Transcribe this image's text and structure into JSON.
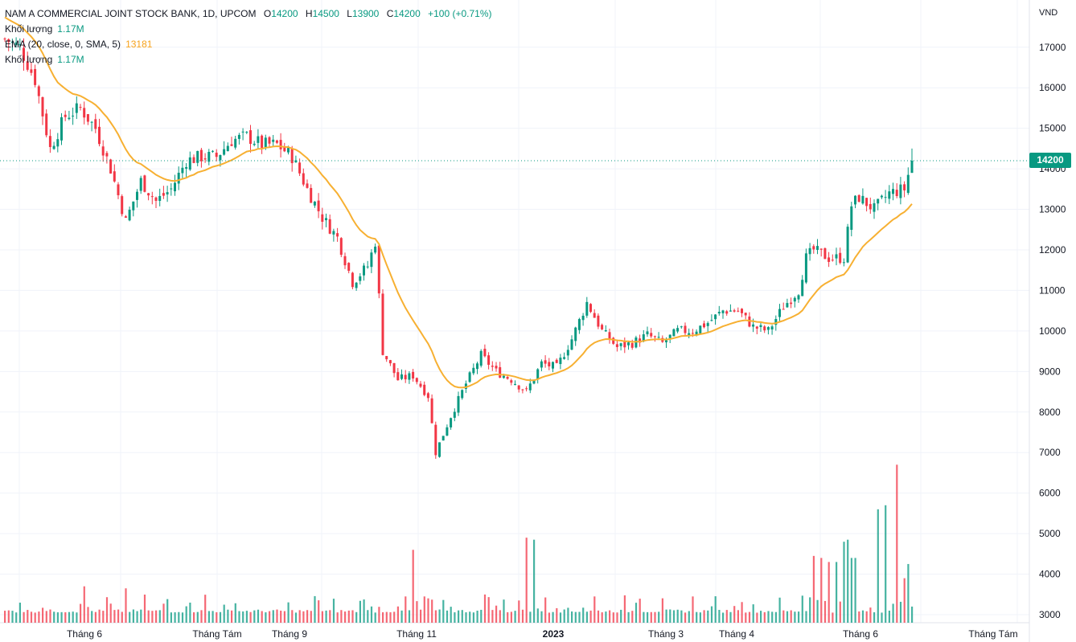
{
  "legend": {
    "symbol": "NAM A COMMERCIAL JOINT STOCK BANK, 1D, UPCOM",
    "open_label": "O",
    "open": "14200",
    "high_label": "H",
    "high": "14500",
    "low_label": "L",
    "low": "13900",
    "close_label": "C",
    "close": "14200",
    "change": "+100 (+0.71%)",
    "volume_label": "Khối lượng",
    "volume_value": "1.17M",
    "ema_label": "EMA (20, close, 0, SMA, 5)",
    "ema_value": "13181",
    "volume_label2": "Khối lượng",
    "volume_value2": "1.17M"
  },
  "price_tag": "14200",
  "unit": "VND",
  "chart_data": {
    "type": "candlestick",
    "y_axis": {
      "min": 2800,
      "max": 17800,
      "ticks": [
        3000,
        4000,
        5000,
        6000,
        7000,
        8000,
        9000,
        10000,
        11000,
        12000,
        13000,
        14000,
        15000,
        16000,
        17000
      ]
    },
    "x_axis_labels": [
      "Tháng 6",
      "Tháng Tám",
      "Tháng 9",
      "Tháng 11",
      "2023",
      "Tháng 3",
      "Tháng 4",
      "Tháng 6",
      "Tháng Tám"
    ],
    "close_anchors": [
      {
        "i": 0,
        "c": 17200
      },
      {
        "i": 4,
        "c": 17000
      },
      {
        "i": 8,
        "c": 16200
      },
      {
        "i": 12,
        "c": 14500
      },
      {
        "i": 16,
        "c": 15300
      },
      {
        "i": 20,
        "c": 15500
      },
      {
        "i": 24,
        "c": 15000
      },
      {
        "i": 28,
        "c": 14000
      },
      {
        "i": 32,
        "c": 12700
      },
      {
        "i": 36,
        "c": 13700
      },
      {
        "i": 40,
        "c": 13200
      },
      {
        "i": 44,
        "c": 13500
      },
      {
        "i": 48,
        "c": 14200
      },
      {
        "i": 52,
        "c": 14300
      },
      {
        "i": 56,
        "c": 14300
      },
      {
        "i": 60,
        "c": 14700
      },
      {
        "i": 64,
        "c": 14800
      },
      {
        "i": 68,
        "c": 14600
      },
      {
        "i": 72,
        "c": 14600
      },
      {
        "i": 76,
        "c": 14300
      },
      {
        "i": 80,
        "c": 13500
      },
      {
        "i": 84,
        "c": 12800
      },
      {
        "i": 88,
        "c": 12300
      },
      {
        "i": 92,
        "c": 11200
      },
      {
        "i": 96,
        "c": 11600
      },
      {
        "i": 98,
        "c": 12200
      },
      {
        "i": 100,
        "c": 9500
      },
      {
        "i": 104,
        "c": 8800
      },
      {
        "i": 108,
        "c": 8900
      },
      {
        "i": 112,
        "c": 8400
      },
      {
        "i": 114,
        "c": 7000
      },
      {
        "i": 118,
        "c": 7900
      },
      {
        "i": 122,
        "c": 8700
      },
      {
        "i": 126,
        "c": 9400
      },
      {
        "i": 130,
        "c": 9000
      },
      {
        "i": 134,
        "c": 8800
      },
      {
        "i": 138,
        "c": 8500
      },
      {
        "i": 142,
        "c": 9200
      },
      {
        "i": 146,
        "c": 9100
      },
      {
        "i": 150,
        "c": 9800
      },
      {
        "i": 154,
        "c": 10700
      },
      {
        "i": 158,
        "c": 10000
      },
      {
        "i": 162,
        "c": 9600
      },
      {
        "i": 166,
        "c": 9700
      },
      {
        "i": 170,
        "c": 9900
      },
      {
        "i": 174,
        "c": 9700
      },
      {
        "i": 178,
        "c": 10000
      },
      {
        "i": 182,
        "c": 10000
      },
      {
        "i": 186,
        "c": 10200
      },
      {
        "i": 190,
        "c": 10500
      },
      {
        "i": 194,
        "c": 10500
      },
      {
        "i": 198,
        "c": 10100
      },
      {
        "i": 202,
        "c": 10000
      },
      {
        "i": 206,
        "c": 10600
      },
      {
        "i": 210,
        "c": 11000
      },
      {
        "i": 212,
        "c": 11800
      },
      {
        "i": 214,
        "c": 12000
      },
      {
        "i": 218,
        "c": 11800
      },
      {
        "i": 222,
        "c": 11800
      },
      {
        "i": 224,
        "c": 13100
      },
      {
        "i": 226,
        "c": 13300
      },
      {
        "i": 230,
        "c": 13000
      },
      {
        "i": 234,
        "c": 13400
      },
      {
        "i": 238,
        "c": 13500
      },
      {
        "i": 240,
        "c": 14200
      }
    ],
    "n_bars": 241,
    "volume_spikes": [
      {
        "i": 21,
        "v": 3700
      },
      {
        "i": 32,
        "v": 3650
      },
      {
        "i": 106,
        "v": 3450
      },
      {
        "i": 108,
        "v": 4600
      },
      {
        "i": 111,
        "v": 3450
      },
      {
        "i": 136,
        "v": 3350
      },
      {
        "i": 138,
        "v": 4900
      },
      {
        "i": 140,
        "v": 4850
      },
      {
        "i": 156,
        "v": 3450
      },
      {
        "i": 182,
        "v": 3450
      },
      {
        "i": 214,
        "v": 4450
      },
      {
        "i": 216,
        "v": 4400
      },
      {
        "i": 218,
        "v": 4300
      },
      {
        "i": 220,
        "v": 4300
      },
      {
        "i": 222,
        "v": 4800
      },
      {
        "i": 223,
        "v": 4850
      },
      {
        "i": 224,
        "v": 4400
      },
      {
        "i": 225,
        "v": 4400
      },
      {
        "i": 231,
        "v": 5600
      },
      {
        "i": 233,
        "v": 5700
      },
      {
        "i": 234,
        "v": 3100
      },
      {
        "i": 236,
        "v": 6700
      },
      {
        "i": 238,
        "v": 3900
      },
      {
        "i": 239,
        "v": 4250
      },
      {
        "i": 240,
        "v": 3200
      }
    ],
    "colors": {
      "up": "#089981",
      "down": "#f23645",
      "ema": "#f7b032",
      "grid": "#f0f3fa",
      "axis_text": "#131722"
    }
  }
}
